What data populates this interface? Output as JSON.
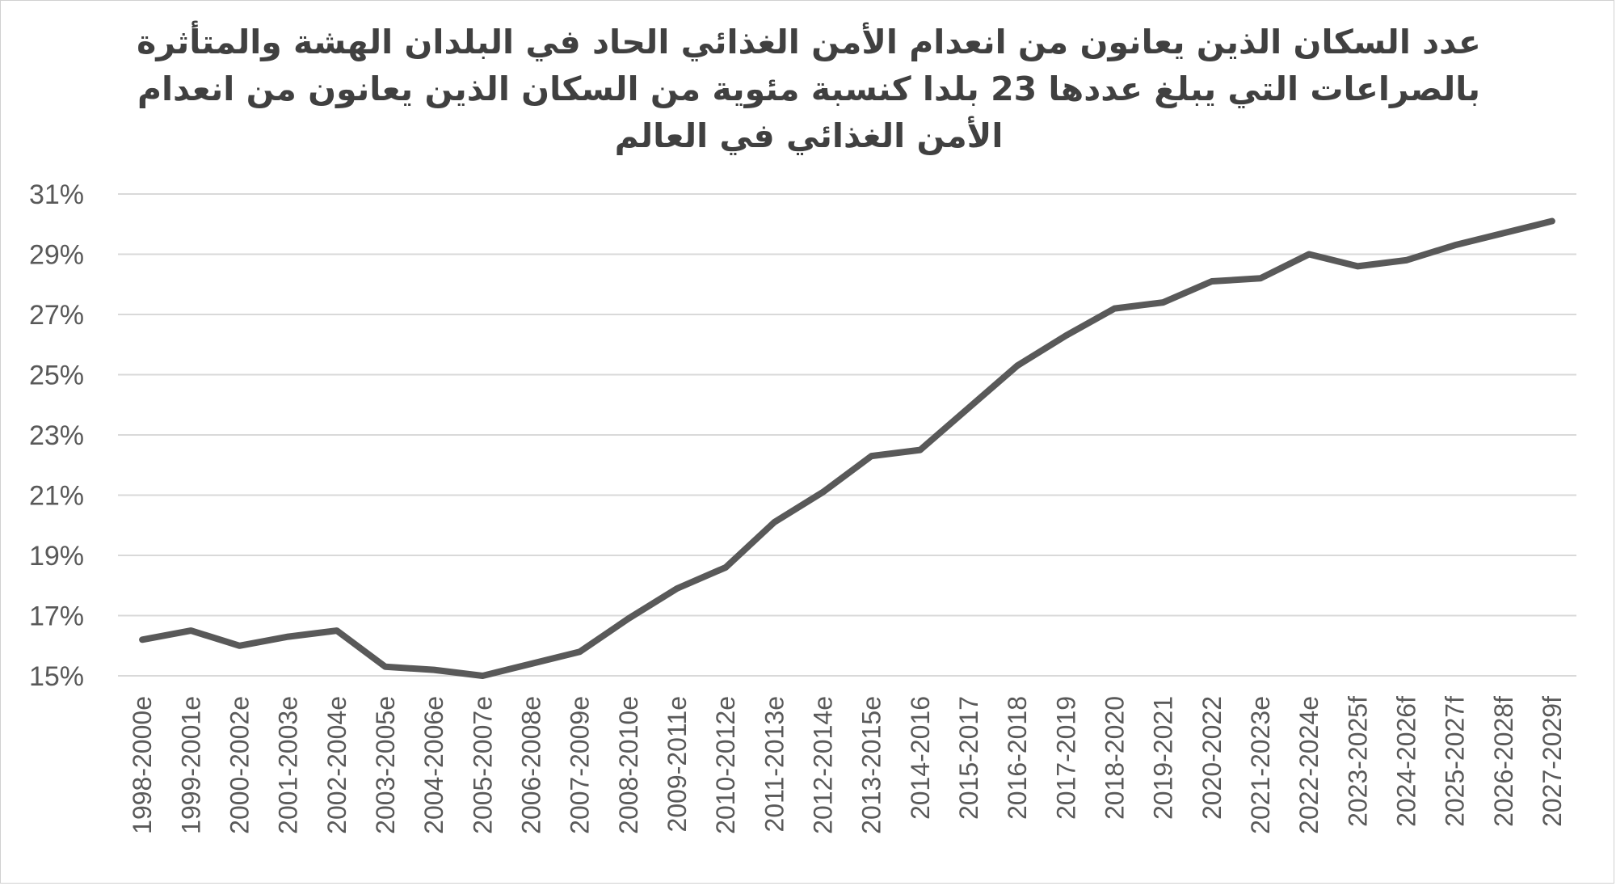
{
  "chart_data": {
    "type": "line",
    "title": "عدد السكان الذين يعانون من انعدام الأمن الغذائي الحاد في البلدان الهشة والمتأثرة بالصراعات التي يبلغ عددها 23 بلدا كنسبة مئوية من السكان الذين يعانون من انعدام الأمن الغذائي في العالم",
    "xlabel": "",
    "ylabel": "",
    "ylim": [
      15,
      31
    ],
    "yticks": [
      "15%",
      "17%",
      "19%",
      "21%",
      "23%",
      "25%",
      "27%",
      "29%",
      "31%"
    ],
    "grid": true,
    "legend": "none",
    "categories": [
      "1998-2000e",
      "1999-2001e",
      "2000-2002e",
      "2001-2003e",
      "2002-2004e",
      "2003-2005e",
      "2004-2006e",
      "2005-2007e",
      "2006-2008e",
      "2007-2009e",
      "2008-2010e",
      "2009-2011e",
      "2010-2012e",
      "2011-2013e",
      "2012-2014e",
      "2013-2015e",
      "2014-2016",
      "2015-2017",
      "2016-2018",
      "2017-2019",
      "2018-2020",
      "2019-2021",
      "2020-2022",
      "2021-2023e",
      "2022-2024e",
      "2023-2025f",
      "2024-2026f",
      "2025-2027f",
      "2026-2028f",
      "2027-2029f"
    ],
    "series": [
      {
        "values": [
          16.2,
          16.5,
          16.0,
          16.3,
          16.5,
          15.3,
          15.2,
          15.0,
          15.4,
          15.8,
          16.9,
          17.9,
          18.6,
          20.1,
          21.1,
          22.3,
          22.5,
          23.9,
          25.3,
          26.3,
          27.2,
          27.4,
          28.1,
          28.2,
          29.0,
          28.6,
          28.8,
          29.3,
          29.7,
          30.1
        ],
        "color": "#595959"
      }
    ],
    "grid_color": "#d9d9d9",
    "text_color": "#595959"
  }
}
